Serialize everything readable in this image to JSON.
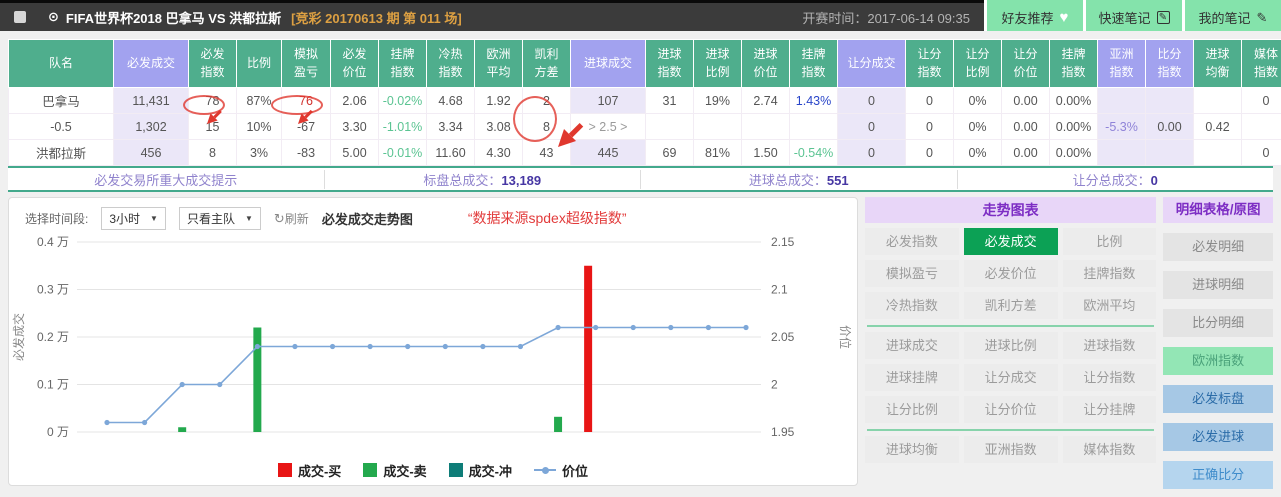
{
  "top_bar": {
    "title": "FIFA世界杯2018  巴拿马  VS 洪都拉斯",
    "round_info": "[竞彩 20170613 期 第 011 场]",
    "start_time": "开赛时间：2017-06-14 09:35",
    "buttons": [
      {
        "label": "好友推荐",
        "icon": "heart-icon"
      },
      {
        "label": "快速笔记",
        "icon": "note-icon"
      },
      {
        "label": "我的笔记",
        "icon": "pencil-icon"
      }
    ]
  },
  "table": {
    "headers": [
      "队名",
      "必发成交",
      "必发指数",
      "比例",
      "模拟盈亏",
      "必发价位",
      "挂牌指数",
      "冷热指数",
      "欧洲平均",
      "凯利方差",
      "进球成交",
      "进球指数",
      "进球比例",
      "进球价位",
      "挂牌指数",
      "让分成交",
      "让分指数",
      "让分比例",
      "让分价位",
      "挂牌指数",
      "亚洲指数",
      "比分指数",
      "进球均衡",
      "媒体指数"
    ],
    "rows": [
      [
        "巴拿马",
        "11,431",
        "78",
        "87%",
        "76",
        "2.06",
        "-0.02%",
        "4.68",
        "1.92",
        "2",
        "107",
        "31",
        "19%",
        "2.74",
        "1.43%",
        "0",
        "0",
        "0%",
        "0.00",
        "0.00%",
        "",
        "",
        "",
        "0"
      ],
      [
        "-0.5",
        "1,302",
        "15",
        "10%",
        "-67",
        "3.30",
        "-1.01%",
        "3.34",
        "3.08",
        "8",
        "> 2.5 >",
        "",
        "",
        "",
        "",
        "0",
        "0",
        "0%",
        "0.00",
        "0.00%",
        "-5.3%",
        "0.00",
        "0.42",
        ""
      ],
      [
        "洪都拉斯",
        "456",
        "8",
        "3%",
        "-83",
        "5.00",
        "-0.01%",
        "11.60",
        "4.30",
        "43",
        "445",
        "69",
        "81%",
        "1.50",
        "-0.54%",
        "0",
        "0",
        "0%",
        "0.00",
        "0.00%",
        "",
        "",
        "",
        "0"
      ]
    ],
    "summary": [
      {
        "label": "必发交易所重大成交提示",
        "value": ""
      },
      {
        "label": "标盘总成交：",
        "value": "13,189"
      },
      {
        "label": "进球总成交：",
        "value": "551"
      },
      {
        "label": "让分总成交：",
        "value": "0"
      }
    ]
  },
  "chart_controls": {
    "time_label": "选择时间段:",
    "time_value": "3小时",
    "scope_value": "只看主队",
    "refresh_label": "刷新",
    "title": "必发成交走势图",
    "source_note": "“数据来源spdex超级指数”"
  },
  "chart_data": {
    "type": "bar+line",
    "title": "必发成交走势图",
    "x_points": 18,
    "grid": true,
    "legend_position": "bottom",
    "left_axis": {
      "label": "必发成交",
      "ticks": [
        "0.4 万",
        "0.3 万",
        "0.2 万",
        "0.1 万",
        "0 万"
      ],
      "range": [
        0,
        4000
      ]
    },
    "right_axis": {
      "label": "价位",
      "ticks": [
        "2.15",
        "2.1",
        "2.05",
        "2",
        "1.95"
      ],
      "range": [
        1.95,
        2.15
      ]
    },
    "legend": [
      {
        "label": "成交-买",
        "color": "#e81515",
        "type": "bar"
      },
      {
        "label": "成交-卖",
        "color": "#23a94d",
        "type": "bar"
      },
      {
        "label": "成交-冲",
        "color": "#0e7d78",
        "type": "bar"
      },
      {
        "label": "价位",
        "color": "#7da7d8",
        "type": "line"
      }
    ],
    "price_line": {
      "name": "价位",
      "values": [
        1.96,
        1.96,
        2.0,
        2.0,
        2.04,
        2.04,
        2.04,
        2.04,
        2.04,
        2.04,
        2.04,
        2.04,
        2.06,
        2.06,
        2.06,
        2.06,
        2.06,
        2.06
      ]
    },
    "bars": [
      {
        "series": "成交-卖",
        "slot": 2,
        "value": 100
      },
      {
        "series": "成交-卖",
        "slot": 4,
        "value": 2200
      },
      {
        "series": "成交-卖",
        "slot": 12,
        "value": 320
      },
      {
        "series": "成交-买",
        "slot": 12.8,
        "value": 3500
      }
    ]
  },
  "annotations": {
    "color": "#e0382e",
    "circled_values": [
      "78",
      "76",
      "2",
      "8"
    ]
  },
  "trend_panel": {
    "title": "走势图表",
    "active": "必发成交",
    "groups": [
      [
        "必发指数",
        "必发成交",
        "比例",
        "模拟盈亏",
        "必发价位",
        "挂牌指数",
        "冷热指数",
        "凯利方差",
        "欧洲平均"
      ],
      [
        "进球成交",
        "进球比例",
        "进球指数",
        "进球挂牌",
        "让分成交",
        "让分指数",
        "让分比例",
        "让分价位",
        "让分挂牌"
      ],
      [
        "进球均衡",
        "亚洲指数",
        "媒体指数"
      ]
    ]
  },
  "detail_panel": {
    "title": "明细表格/原图",
    "buttons": [
      {
        "label": "必发明细",
        "variant": "gray"
      },
      {
        "label": "进球明细",
        "variant": "gray"
      },
      {
        "label": "比分明细",
        "variant": "gray"
      },
      {
        "label": "欧洲指数",
        "variant": "green"
      },
      {
        "label": "必发标盘",
        "variant": "blue"
      },
      {
        "label": "必发进球",
        "variant": "blue"
      },
      {
        "label": "正确比分",
        "variant": "blue-light"
      }
    ]
  }
}
